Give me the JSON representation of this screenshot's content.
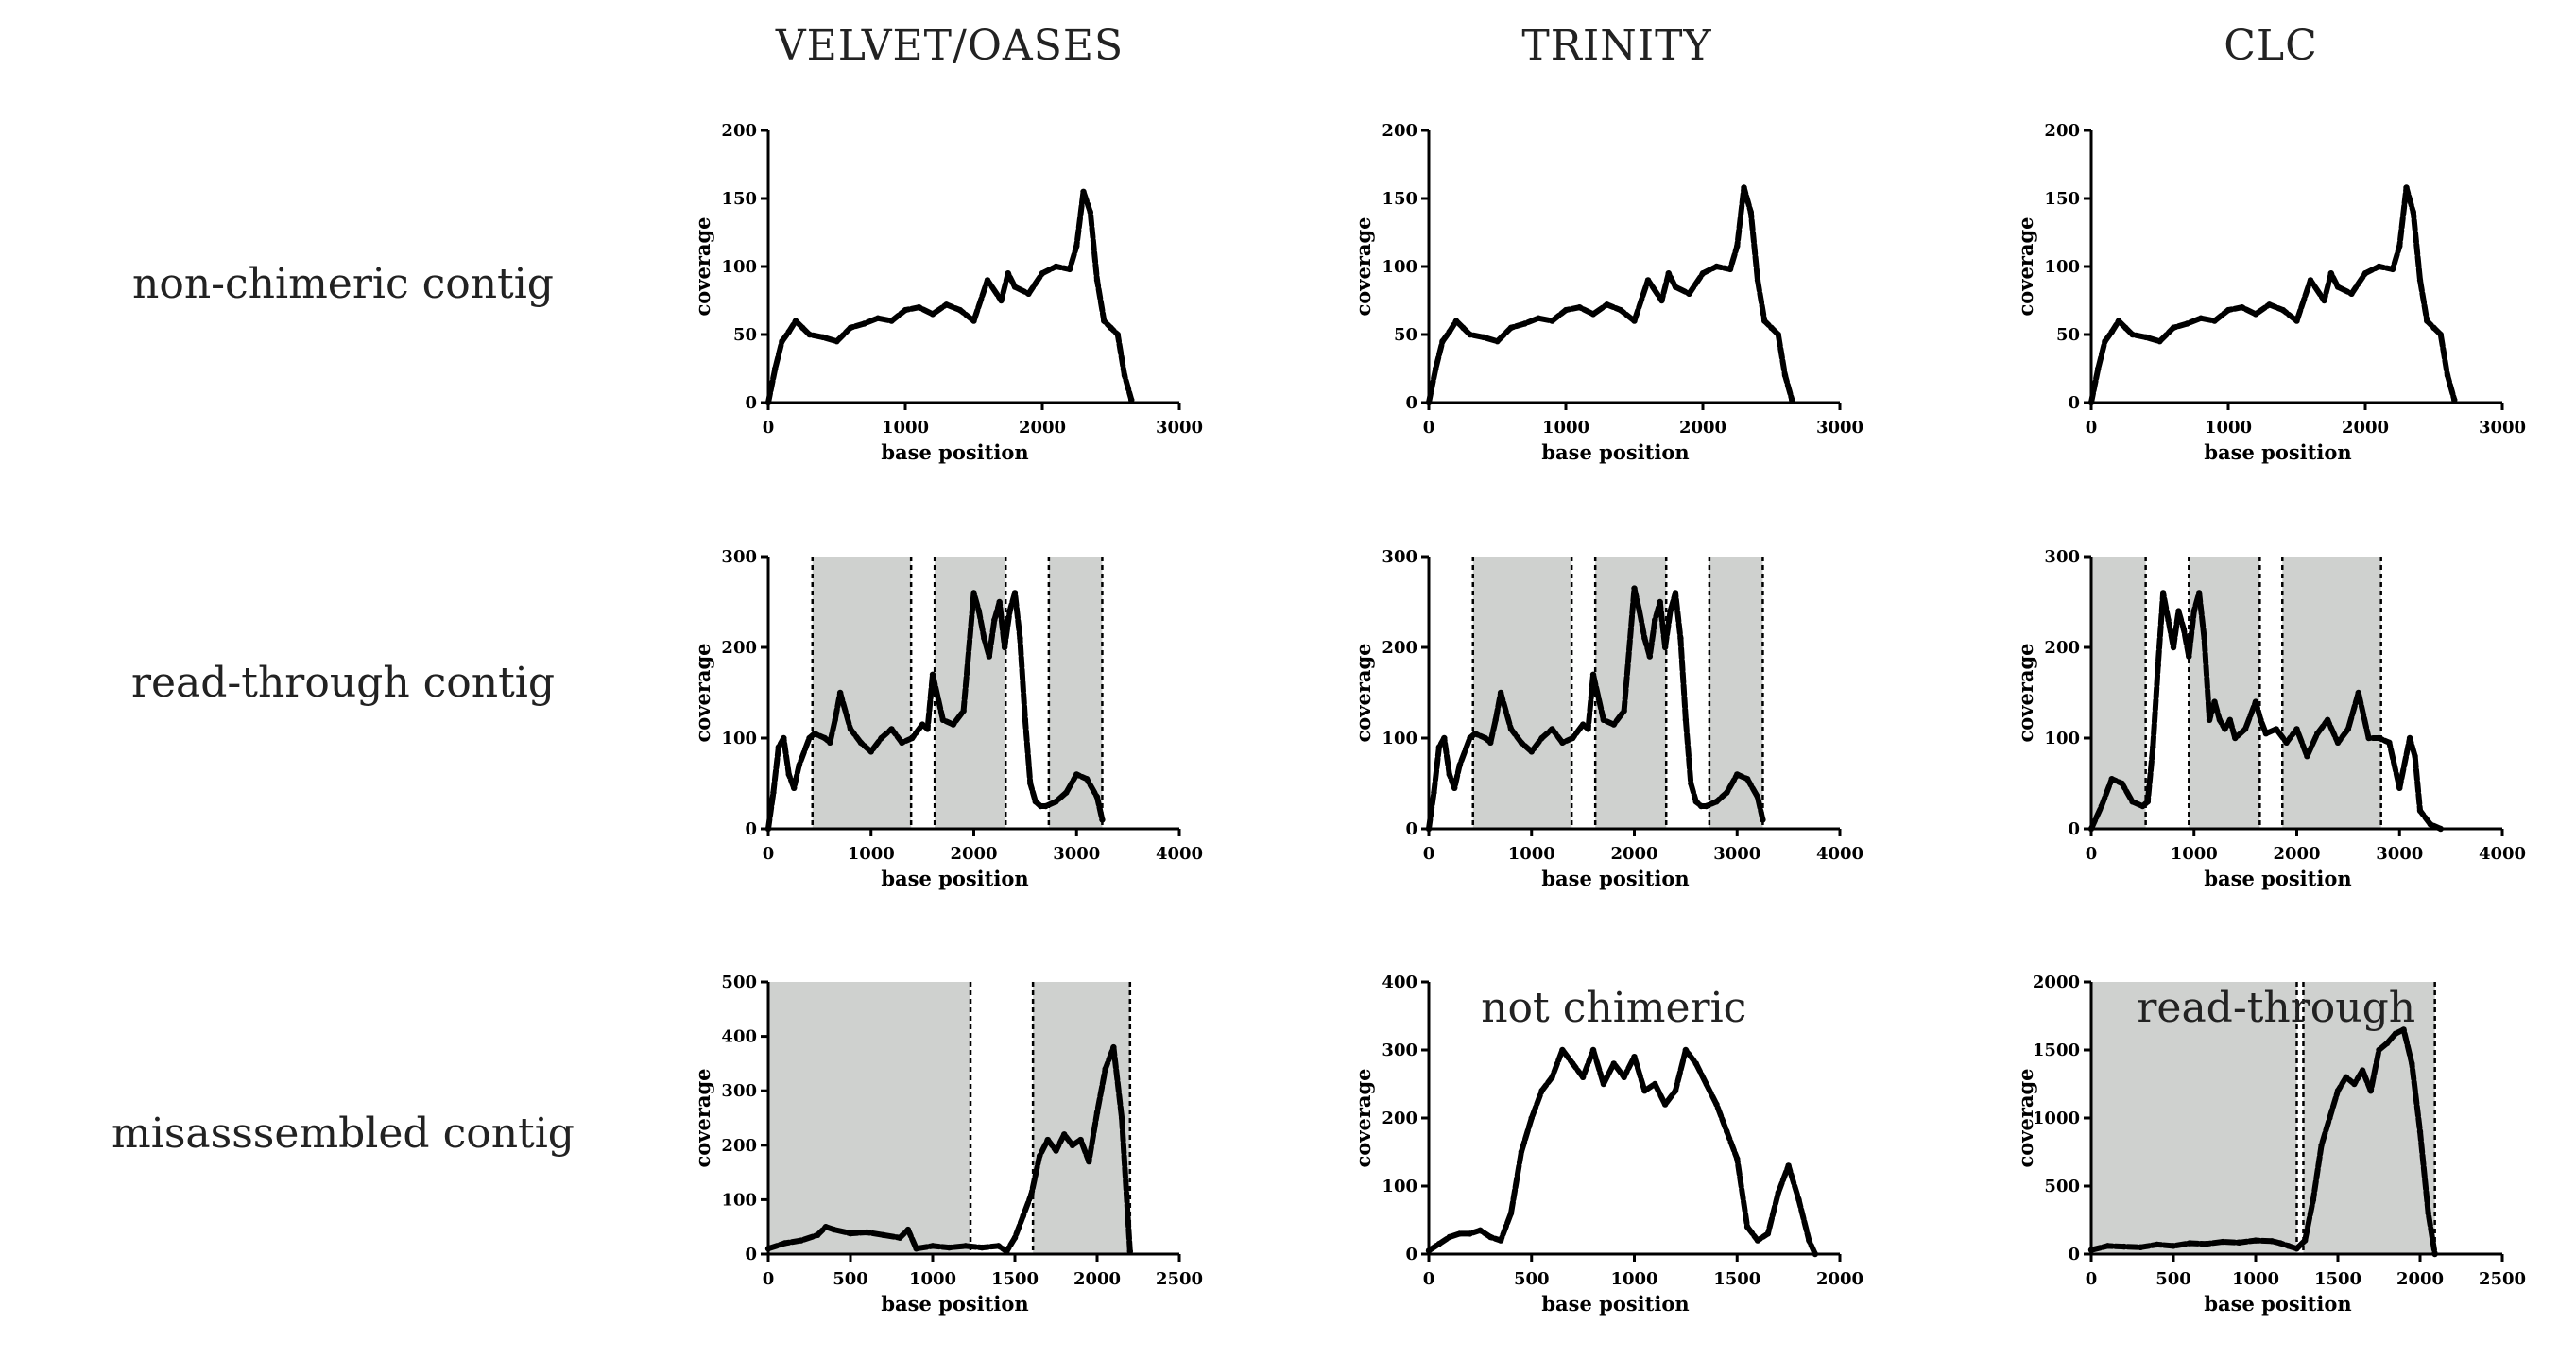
{
  "columns": [
    "VELVET/OASES",
    "TRINITY",
    "CLC"
  ],
  "rows": [
    "non-chimeric contig",
    "read-through contig",
    "misasssembled contig"
  ],
  "chart_data": [
    {
      "id": "r0c0",
      "type": "line",
      "xlabel": "base position",
      "ylabel": "coverage",
      "xlim": [
        0,
        3000
      ],
      "ylim": [
        0,
        200
      ],
      "xticks": [
        "0",
        "1000",
        "2000",
        "3000"
      ],
      "yticks": [
        "0",
        "50",
        "100",
        "150",
        "200"
      ],
      "annotation": "",
      "shaded": [],
      "x": [
        0,
        50,
        100,
        150,
        200,
        250,
        300,
        400,
        500,
        600,
        700,
        800,
        900,
        1000,
        1100,
        1200,
        1300,
        1400,
        1500,
        1600,
        1700,
        1750,
        1800,
        1900,
        2000,
        2100,
        2200,
        2250,
        2300,
        2350,
        2400,
        2450,
        2500,
        2550,
        2600,
        2650
      ],
      "y": [
        0,
        25,
        45,
        52,
        60,
        55,
        50,
        48,
        45,
        55,
        58,
        62,
        60,
        68,
        70,
        65,
        72,
        68,
        60,
        90,
        75,
        95,
        85,
        80,
        95,
        100,
        98,
        115,
        155,
        140,
        90,
        60,
        55,
        50,
        20,
        2
      ]
    },
    {
      "id": "r0c1",
      "type": "line",
      "xlabel": "base position",
      "ylabel": "coverage",
      "xlim": [
        0,
        3000
      ],
      "ylim": [
        0,
        200
      ],
      "xticks": [
        "0",
        "1000",
        "2000",
        "3000"
      ],
      "yticks": [
        "0",
        "50",
        "100",
        "150",
        "200"
      ],
      "annotation": "",
      "shaded": [],
      "x": [
        0,
        50,
        100,
        150,
        200,
        250,
        300,
        400,
        500,
        600,
        700,
        800,
        900,
        1000,
        1100,
        1200,
        1300,
        1400,
        1500,
        1600,
        1700,
        1750,
        1800,
        1900,
        2000,
        2100,
        2200,
        2250,
        2300,
        2350,
        2400,
        2450,
        2500,
        2550,
        2600,
        2650
      ],
      "y": [
        0,
        25,
        45,
        52,
        60,
        55,
        50,
        48,
        45,
        55,
        58,
        62,
        60,
        68,
        70,
        65,
        72,
        68,
        60,
        90,
        75,
        95,
        85,
        80,
        95,
        100,
        98,
        115,
        158,
        140,
        90,
        60,
        55,
        50,
        20,
        2
      ]
    },
    {
      "id": "r0c2",
      "type": "line",
      "xlabel": "base position",
      "ylabel": "coverage",
      "xlim": [
        0,
        3000
      ],
      "ylim": [
        0,
        200
      ],
      "xticks": [
        "0",
        "1000",
        "2000",
        "3000"
      ],
      "yticks": [
        "0",
        "50",
        "100",
        "150",
        "200"
      ],
      "annotation": "",
      "shaded": [],
      "x": [
        0,
        50,
        100,
        150,
        200,
        250,
        300,
        400,
        500,
        600,
        700,
        800,
        900,
        1000,
        1100,
        1200,
        1300,
        1400,
        1500,
        1600,
        1700,
        1750,
        1800,
        1900,
        2000,
        2100,
        2200,
        2250,
        2300,
        2350,
        2400,
        2450,
        2500,
        2550,
        2600,
        2650
      ],
      "y": [
        0,
        25,
        45,
        52,
        60,
        55,
        50,
        48,
        45,
        55,
        58,
        62,
        60,
        68,
        70,
        65,
        72,
        68,
        60,
        90,
        75,
        95,
        85,
        80,
        95,
        100,
        98,
        115,
        158,
        140,
        90,
        60,
        55,
        50,
        20,
        2
      ]
    },
    {
      "id": "r1c0",
      "type": "line",
      "xlabel": "base position",
      "ylabel": "coverage",
      "xlim": [
        0,
        4000
      ],
      "ylim": [
        0,
        300
      ],
      "xticks": [
        "0",
        "1000",
        "2000",
        "3000",
        "4000"
      ],
      "yticks": [
        "0",
        "100",
        "200",
        "300"
      ],
      "annotation": "",
      "shaded": [
        [
          430,
          1390
        ],
        [
          1620,
          2310
        ],
        [
          2730,
          3250
        ]
      ],
      "x": [
        0,
        50,
        100,
        150,
        200,
        250,
        300,
        400,
        450,
        550,
        600,
        650,
        700,
        800,
        900,
        1000,
        1100,
        1200,
        1300,
        1400,
        1500,
        1550,
        1600,
        1700,
        1800,
        1900,
        2000,
        2050,
        2100,
        2150,
        2200,
        2250,
        2300,
        2350,
        2400,
        2450,
        2500,
        2550,
        2600,
        2650,
        2700,
        2800,
        2900,
        3000,
        3100,
        3200,
        3250
      ],
      "y": [
        0,
        40,
        90,
        100,
        60,
        45,
        70,
        100,
        105,
        100,
        95,
        120,
        150,
        110,
        95,
        85,
        100,
        110,
        95,
        100,
        115,
        110,
        170,
        120,
        115,
        130,
        260,
        240,
        210,
        190,
        230,
        250,
        200,
        240,
        260,
        210,
        120,
        50,
        30,
        25,
        25,
        30,
        40,
        60,
        55,
        35,
        10
      ]
    },
    {
      "id": "r1c1",
      "type": "line",
      "xlabel": "base position",
      "ylabel": "coverage",
      "xlim": [
        0,
        4000
      ],
      "ylim": [
        0,
        300
      ],
      "xticks": [
        "0",
        "1000",
        "2000",
        "3000",
        "4000"
      ],
      "yticks": [
        "0",
        "100",
        "200",
        "300"
      ],
      "annotation": "",
      "shaded": [
        [
          430,
          1390
        ],
        [
          1620,
          2310
        ],
        [
          2730,
          3250
        ]
      ],
      "x": [
        0,
        50,
        100,
        150,
        200,
        250,
        300,
        400,
        450,
        550,
        600,
        650,
        700,
        800,
        900,
        1000,
        1100,
        1200,
        1300,
        1400,
        1500,
        1550,
        1600,
        1700,
        1800,
        1900,
        2000,
        2050,
        2100,
        2150,
        2200,
        2250,
        2300,
        2350,
        2400,
        2450,
        2500,
        2550,
        2600,
        2650,
        2700,
        2800,
        2900,
        3000,
        3100,
        3200,
        3250
      ],
      "y": [
        0,
        40,
        90,
        100,
        60,
        45,
        70,
        100,
        105,
        100,
        95,
        120,
        150,
        110,
        95,
        85,
        100,
        110,
        95,
        100,
        115,
        110,
        170,
        120,
        115,
        130,
        265,
        240,
        210,
        190,
        230,
        250,
        200,
        240,
        260,
        210,
        120,
        50,
        30,
        25,
        25,
        30,
        40,
        60,
        55,
        35,
        10
      ]
    },
    {
      "id": "r1c2",
      "type": "line",
      "xlabel": "base position",
      "ylabel": "coverage",
      "xlim": [
        0,
        4000
      ],
      "ylim": [
        0,
        300
      ],
      "xticks": [
        "0",
        "1000",
        "2000",
        "3000",
        "4000"
      ],
      "yticks": [
        "0",
        "100",
        "200",
        "300"
      ],
      "annotation": "",
      "shaded": [
        [
          0,
          530
        ],
        [
          950,
          1640
        ],
        [
          1860,
          2820
        ]
      ],
      "x": [
        0,
        100,
        200,
        300,
        400,
        500,
        550,
        600,
        650,
        700,
        750,
        800,
        850,
        900,
        950,
        1000,
        1050,
        1100,
        1150,
        1200,
        1250,
        1300,
        1350,
        1400,
        1500,
        1600,
        1650,
        1700,
        1800,
        1900,
        2000,
        2100,
        2200,
        2300,
        2400,
        2500,
        2600,
        2700,
        2800,
        2900,
        3000,
        3100,
        3150,
        3200,
        3300,
        3400
      ],
      "y": [
        0,
        25,
        55,
        50,
        30,
        25,
        30,
        90,
        180,
        260,
        230,
        200,
        240,
        220,
        190,
        240,
        260,
        210,
        120,
        140,
        120,
        110,
        120,
        100,
        110,
        140,
        120,
        105,
        110,
        95,
        110,
        80,
        105,
        120,
        95,
        110,
        150,
        100,
        100,
        95,
        45,
        100,
        80,
        20,
        5,
        0
      ]
    },
    {
      "id": "r2c0",
      "type": "line",
      "xlabel": "base position",
      "ylabel": "coverage",
      "xlim": [
        0,
        2500
      ],
      "ylim": [
        0,
        500
      ],
      "xticks": [
        "0",
        "500",
        "1000",
        "1500",
        "2000",
        "2500"
      ],
      "yticks": [
        "0",
        "100",
        "200",
        "300",
        "400",
        "500"
      ],
      "annotation": "",
      "shaded": [
        [
          0,
          1230
        ],
        [
          1610,
          2200
        ]
      ],
      "x": [
        0,
        100,
        200,
        300,
        350,
        400,
        500,
        600,
        700,
        800,
        850,
        900,
        1000,
        1100,
        1200,
        1300,
        1400,
        1450,
        1500,
        1550,
        1600,
        1650,
        1700,
        1750,
        1800,
        1850,
        1900,
        1950,
        2000,
        2050,
        2100,
        2150,
        2200
      ],
      "y": [
        10,
        20,
        25,
        35,
        50,
        45,
        38,
        40,
        35,
        30,
        45,
        10,
        15,
        12,
        15,
        12,
        15,
        5,
        30,
        70,
        110,
        180,
        210,
        190,
        220,
        200,
        210,
        170,
        260,
        340,
        380,
        250,
        5
      ]
    },
    {
      "id": "r2c1",
      "type": "line",
      "xlabel": "base position",
      "ylabel": "coverage",
      "xlim": [
        0,
        2000
      ],
      "ylim": [
        0,
        400
      ],
      "xticks": [
        "0",
        "500",
        "1000",
        "1500",
        "2000"
      ],
      "yticks": [
        "0",
        "100",
        "200",
        "300",
        "400"
      ],
      "annotation": "not chimeric",
      "shaded": [],
      "x": [
        0,
        50,
        100,
        150,
        200,
        250,
        300,
        350,
        400,
        450,
        500,
        550,
        600,
        650,
        700,
        750,
        800,
        850,
        900,
        950,
        1000,
        1050,
        1100,
        1150,
        1200,
        1250,
        1300,
        1350,
        1400,
        1450,
        1500,
        1550,
        1600,
        1650,
        1700,
        1750,
        1800,
        1850,
        1880
      ],
      "y": [
        5,
        15,
        25,
        30,
        30,
        35,
        25,
        20,
        60,
        150,
        200,
        240,
        260,
        300,
        280,
        260,
        300,
        250,
        280,
        260,
        290,
        240,
        250,
        220,
        240,
        300,
        280,
        250,
        220,
        180,
        140,
        40,
        20,
        30,
        90,
        130,
        80,
        20,
        0
      ]
    },
    {
      "id": "r2c2",
      "type": "line",
      "xlabel": "base position",
      "ylabel": "coverage",
      "xlim": [
        0,
        2500
      ],
      "ylim": [
        0,
        2000
      ],
      "xticks": [
        "0",
        "500",
        "1000",
        "1500",
        "2000",
        "2500"
      ],
      "yticks": [
        "0",
        "500",
        "1000",
        "1500",
        "2000"
      ],
      "annotation": "read-through",
      "shaded": [
        [
          0,
          1250
        ],
        [
          1290,
          2090
        ]
      ],
      "x": [
        0,
        100,
        200,
        300,
        400,
        500,
        600,
        700,
        800,
        900,
        1000,
        1100,
        1150,
        1200,
        1250,
        1300,
        1350,
        1400,
        1450,
        1500,
        1550,
        1600,
        1650,
        1700,
        1750,
        1800,
        1850,
        1900,
        1950,
        2000,
        2050,
        2090
      ],
      "y": [
        30,
        60,
        55,
        50,
        70,
        60,
        80,
        75,
        90,
        85,
        100,
        95,
        80,
        60,
        40,
        100,
        400,
        800,
        1000,
        1200,
        1300,
        1250,
        1350,
        1200,
        1500,
        1550,
        1620,
        1650,
        1400,
        900,
        300,
        0
      ]
    }
  ]
}
